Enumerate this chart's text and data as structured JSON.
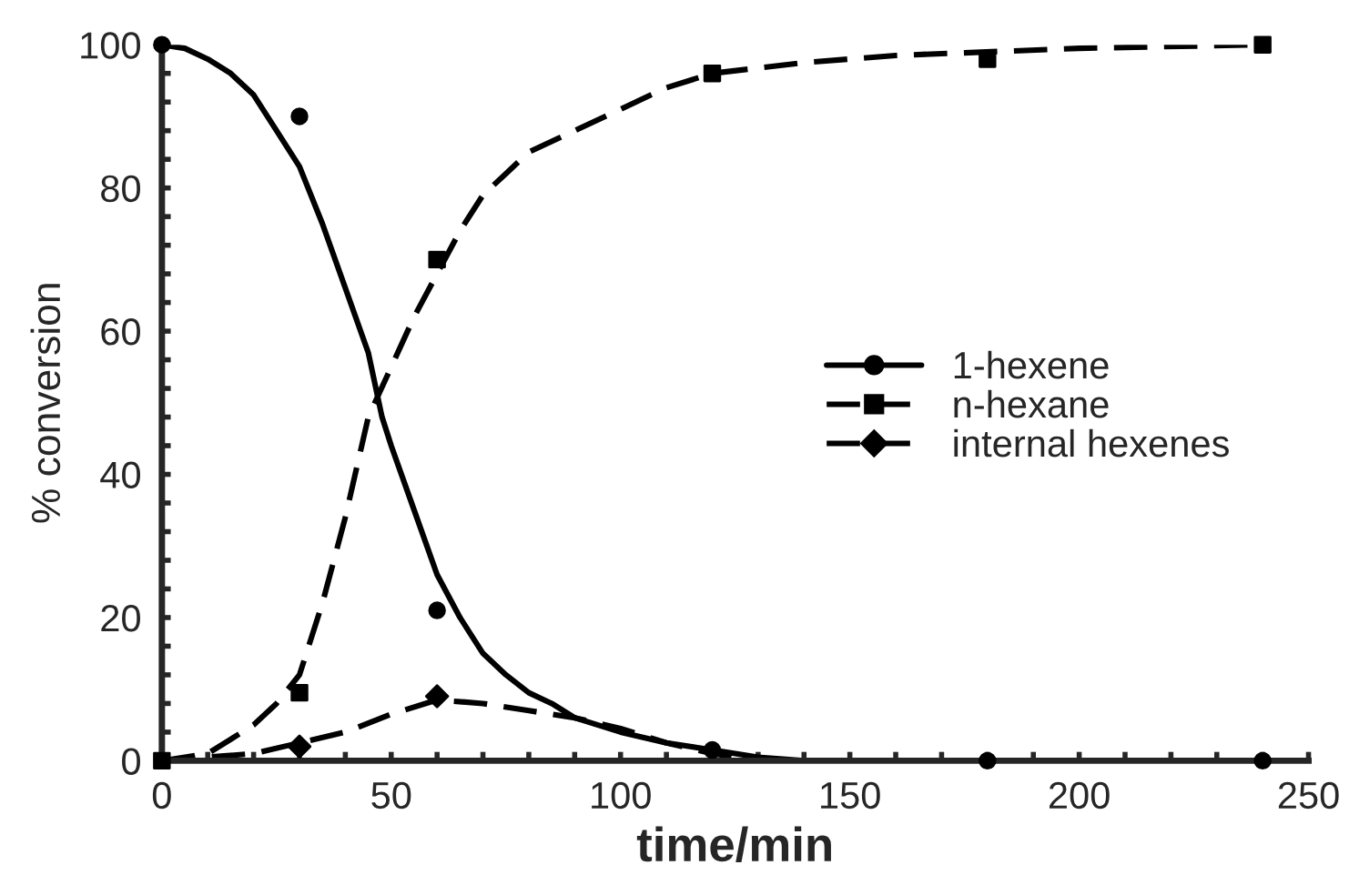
{
  "chart_data": {
    "type": "line",
    "xlabel": "time/min",
    "ylabel": "% conversion",
    "xlim": [
      0,
      250
    ],
    "ylim": [
      0,
      100
    ],
    "xticks": [
      0,
      {
        "value": 10,
        "label": null
      },
      {
        "value": 20,
        "label": null
      },
      {
        "value": 30,
        "label": null
      },
      {
        "value": 40,
        "label": null
      },
      50,
      {
        "value": 60,
        "label": null
      },
      {
        "value": 70,
        "label": null
      },
      {
        "value": 80,
        "label": null
      },
      {
        "value": 90,
        "label": null
      },
      100,
      {
        "value": 110,
        "label": null
      },
      {
        "value": 120,
        "label": null
      },
      {
        "value": 130,
        "label": null
      },
      {
        "value": 140,
        "label": null
      },
      150,
      {
        "value": 160,
        "label": null
      },
      {
        "value": 170,
        "label": null
      },
      {
        "value": 180,
        "label": null
      },
      {
        "value": 190,
        "label": null
      },
      200,
      {
        "value": 210,
        "label": null
      },
      {
        "value": 220,
        "label": null
      },
      {
        "value": 230,
        "label": null
      },
      {
        "value": 240,
        "label": null
      },
      250
    ],
    "yticks": [
      0,
      {
        "value": 4,
        "label": null
      },
      {
        "value": 8,
        "label": null
      },
      {
        "value": 12,
        "label": null
      },
      {
        "value": 16,
        "label": null
      },
      20,
      {
        "value": 24,
        "label": null
      },
      {
        "value": 28,
        "label": null
      },
      {
        "value": 32,
        "label": null
      },
      {
        "value": 36,
        "label": null
      },
      40,
      {
        "value": 44,
        "label": null
      },
      {
        "value": 48,
        "label": null
      },
      {
        "value": 52,
        "label": null
      },
      {
        "value": 56,
        "label": null
      },
      60,
      {
        "value": 64,
        "label": null
      },
      {
        "value": 68,
        "label": null
      },
      {
        "value": 72,
        "label": null
      },
      {
        "value": 76,
        "label": null
      },
      80,
      {
        "value": 84,
        "label": null
      },
      {
        "value": 88,
        "label": null
      },
      {
        "value": 92,
        "label": null
      },
      {
        "value": 96,
        "label": null
      },
      100
    ],
    "grid": false,
    "legend": "right",
    "series": [
      {
        "name": "1-hexene",
        "type": "scatter",
        "marker": "circle",
        "color": "#000000",
        "x": [
          0,
          30,
          60,
          120,
          180,
          240
        ],
        "values": [
          100,
          90,
          21,
          1.5,
          0,
          0
        ]
      },
      {
        "line_style": "solid",
        "marker": "none",
        "color": "#000000",
        "x": [
          0,
          5,
          10,
          15,
          20,
          25,
          30,
          35,
          40,
          45,
          48,
          50,
          55,
          60,
          65,
          70,
          75,
          80,
          85,
          90,
          100,
          110,
          120,
          130,
          140,
          250
        ],
        "values": [
          100,
          99.5,
          98,
          96,
          93,
          88,
          83,
          75,
          66,
          57,
          48,
          44,
          35,
          26,
          20,
          15,
          12,
          9.5,
          8,
          6,
          4,
          2.5,
          1.5,
          0.5,
          0,
          0
        ]
      },
      {
        "name": "n-hexane",
        "type": "scatter",
        "marker": "square",
        "color": "#000000",
        "x": [
          0,
          30,
          60,
          120,
          180,
          240
        ],
        "values": [
          0,
          9.5,
          70,
          96,
          98,
          100
        ]
      },
      {
        "line_style": "dashed",
        "marker": "none",
        "color": "#000000",
        "x": [
          0,
          10,
          15,
          20,
          25,
          30,
          35,
          40,
          45,
          50,
          55,
          60,
          65,
          70,
          75,
          80,
          90,
          100,
          110,
          120,
          140,
          160,
          200,
          240
        ],
        "values": [
          0,
          1,
          3,
          5,
          8,
          12,
          22,
          34,
          48,
          55,
          62,
          68,
          74,
          79,
          82,
          85,
          88,
          91,
          94,
          96,
          97.5,
          98.5,
          99.5,
          100
        ]
      },
      {
        "name": "internal hexenes",
        "type": "scatter",
        "marker": "diamond",
        "color": "#000000",
        "x": [
          30,
          60
        ],
        "values": [
          2,
          9
        ]
      },
      {
        "line_style": "dashed",
        "marker": "none",
        "color": "#000000",
        "x": [
          0,
          20,
          30,
          40,
          50,
          60,
          70,
          80,
          90,
          100,
          110,
          120,
          130,
          250
        ],
        "values": [
          0,
          1,
          2.5,
          4,
          6.5,
          8.5,
          8,
          7,
          6,
          4.5,
          2.5,
          1,
          0,
          0
        ]
      }
    ]
  }
}
